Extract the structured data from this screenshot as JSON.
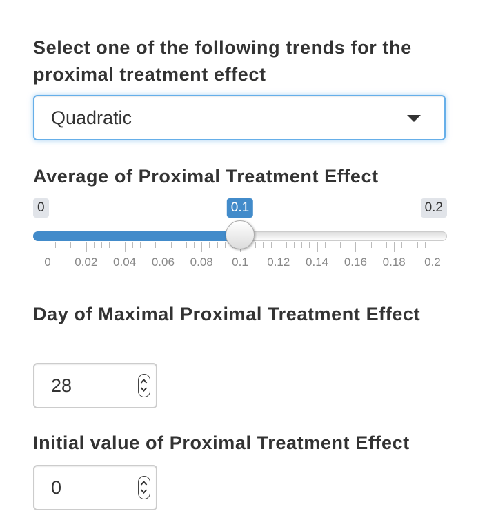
{
  "trend": {
    "label": "Select one of the following trends for the proximal treatment effect",
    "selected": "Quadratic",
    "caret_icon": "caret-down-icon"
  },
  "average": {
    "label": "Average of Proximal Treatment Effect",
    "min": 0,
    "max": 0.2,
    "value": 0.1,
    "min_label": "0",
    "max_label": "0.2",
    "value_label": "0.1",
    "fill_color": "#428bca",
    "ticks": [
      "0",
      "0.02",
      "0.04",
      "0.06",
      "0.08",
      "0.1",
      "0.12",
      "0.14",
      "0.16",
      "0.18",
      "0.2"
    ]
  },
  "day": {
    "label": "Day of Maximal Proximal Treatment Effect",
    "value": "28"
  },
  "initial": {
    "label": "Initial value of Proximal Treatment Effect",
    "value": "0"
  }
}
